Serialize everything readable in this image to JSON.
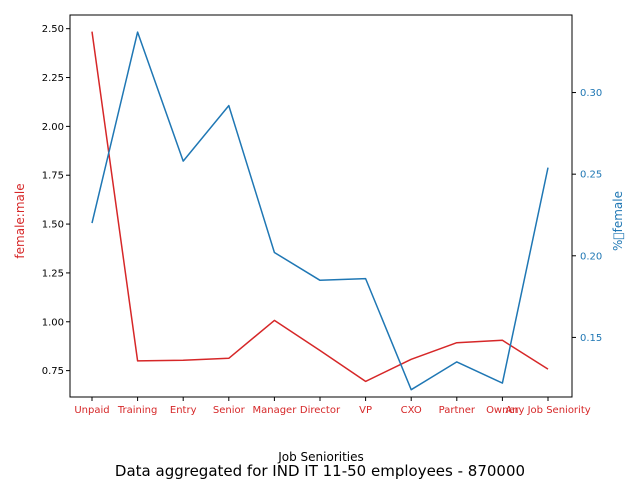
{
  "figure": {
    "caption": "Data aggregated for IND IT 11-50 employees - 870000"
  },
  "chart_data": {
    "type": "line",
    "xlabel": "Job Seniorities",
    "categories": [
      "Unpaid",
      "Training",
      "Entry",
      "Senior",
      "Manager",
      "Director",
      "VP",
      "CXO",
      "Partner",
      "Owner",
      "Any Job Seniority"
    ],
    "series": [
      {
        "name": "female:male",
        "axis": "left",
        "color": "#d62728",
        "values": [
          2.485,
          0.8,
          0.803,
          0.813,
          1.007,
          0.853,
          0.695,
          0.808,
          0.893,
          0.905,
          0.758
        ]
      },
      {
        "name": "%female",
        "axis": "right",
        "color": "#1f77b4",
        "values": [
          0.22,
          0.337,
          0.258,
          0.292,
          0.202,
          0.185,
          0.186,
          0.118,
          0.135,
          0.122,
          0.254
        ]
      }
    ],
    "left_axis": {
      "label": "female:male",
      "color": "#d62728",
      "ylim": [
        0.615,
        2.57
      ],
      "ticks": [
        "0.75",
        "1.00",
        "1.25",
        "1.50",
        "1.75",
        "2.00",
        "2.25",
        "2.50"
      ]
    },
    "right_axis": {
      "label": "%\u0000female",
      "color": "#1f77b4",
      "ylim": [
        0.1135,
        0.3475
      ],
      "ticks": [
        "0.15",
        "0.20",
        "0.25",
        "0.30"
      ]
    },
    "tick_label_color": "#d62728",
    "grid": false,
    "legend": "none"
  }
}
